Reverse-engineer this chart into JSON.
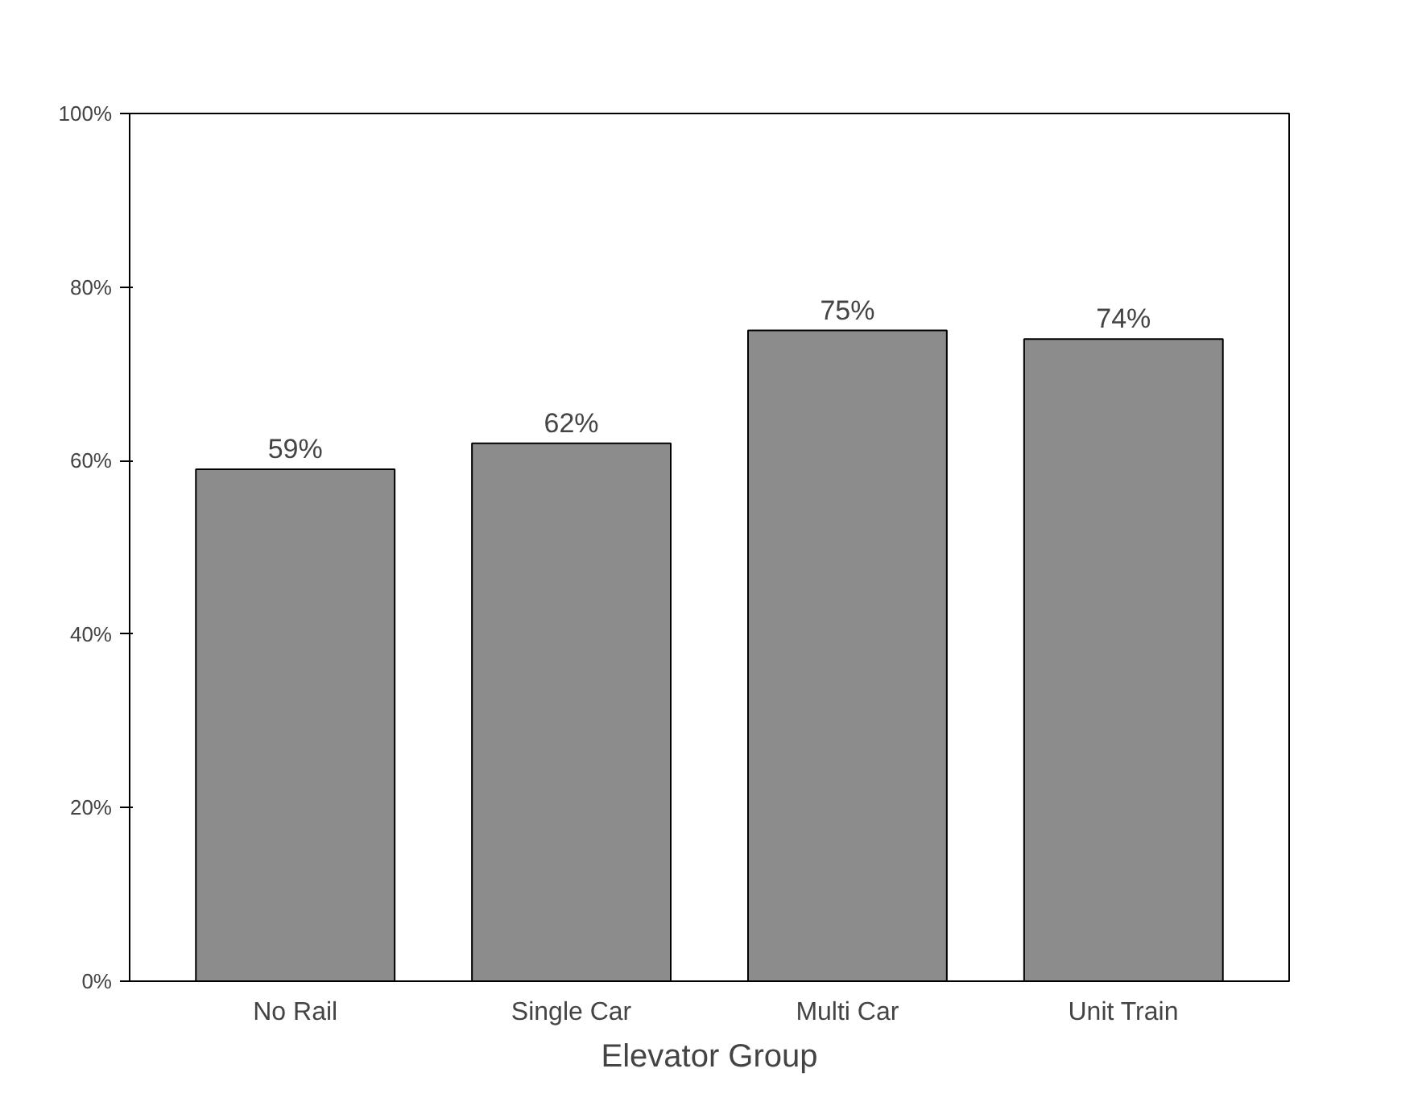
{
  "chart_data": {
    "type": "bar",
    "xlabel": "Elevator Group",
    "categories": [
      "No Rail",
      "Single Car",
      "Multi Car",
      "Unit Train"
    ],
    "values": [
      59,
      62,
      75,
      74
    ],
    "value_labels": [
      "59%",
      "62%",
      "75%",
      "74%"
    ],
    "color": "#8c8c8c",
    "ylim": [
      0,
      100
    ],
    "yticks": [
      {
        "value": 0,
        "label": "0%"
      },
      {
        "value": 20,
        "label": "20%"
      },
      {
        "value": 40,
        "label": "40%"
      },
      {
        "value": 60,
        "label": "60%"
      },
      {
        "value": 80,
        "label": "80%"
      },
      {
        "value": 100,
        "label": "100%"
      }
    ],
    "grid": false
  }
}
